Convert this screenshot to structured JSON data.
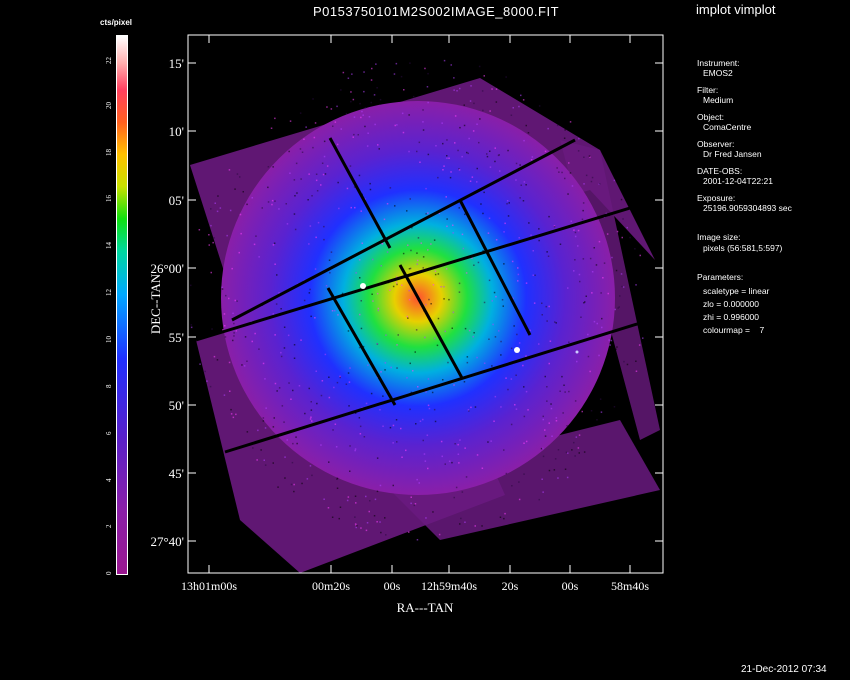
{
  "header": {
    "plot_title": "P0153750101M2S002IMAGE_8000.FIT",
    "app_title": "implot vimplot"
  },
  "colorbar": {
    "label": "cts/pixel",
    "ticks": [
      "0",
      "2",
      "4",
      "6",
      "8",
      "10",
      "12",
      "14",
      "16",
      "18",
      "20",
      "22"
    ],
    "vmin": 0,
    "vmax": 23
  },
  "axes": {
    "xlabel": "RA---TAN",
    "ylabel": "DEC--TAN",
    "x_ticks": [
      "13h01m00s",
      "00m20s",
      "00s",
      "12h59m40s",
      "20s",
      "00s",
      "58m40s"
    ],
    "y_ticks": [
      "15'",
      "10'",
      "05'",
      "26°00'",
      "55'",
      "50'",
      "45'",
      "27°40'"
    ]
  },
  "info": {
    "instrument_label": "Instrument:",
    "instrument_value": "EMOS2",
    "filter_label": "Filter:",
    "filter_value": "Medium",
    "object_label": "Object:",
    "object_value": "ComaCentre",
    "observer_label": "Observer:",
    "observer_value": "Dr Fred Jansen",
    "date_label": "DATE-OBS:",
    "date_value": "2001-12-04T22:21",
    "exposure_label": "Exposure:",
    "exposure_value": "25196.9059304893 sec",
    "imsize_label": "Image size:",
    "imsize_value": "pixels (56:581,5:597)",
    "params_label": "Parameters:",
    "scaletype": "scaletype = linear",
    "zlo": "zlo = 0.000000",
    "zhi": "zhi = 0.996000",
    "colourmap": "colourmap =    7"
  },
  "footer": {
    "timestamp": "21-Dec-2012 07:34"
  },
  "colors": {
    "background": "#000000",
    "frame": "#ffffff",
    "low": "#8a1fa8",
    "mid": "#2030ff",
    "high": "#ff5030"
  }
}
